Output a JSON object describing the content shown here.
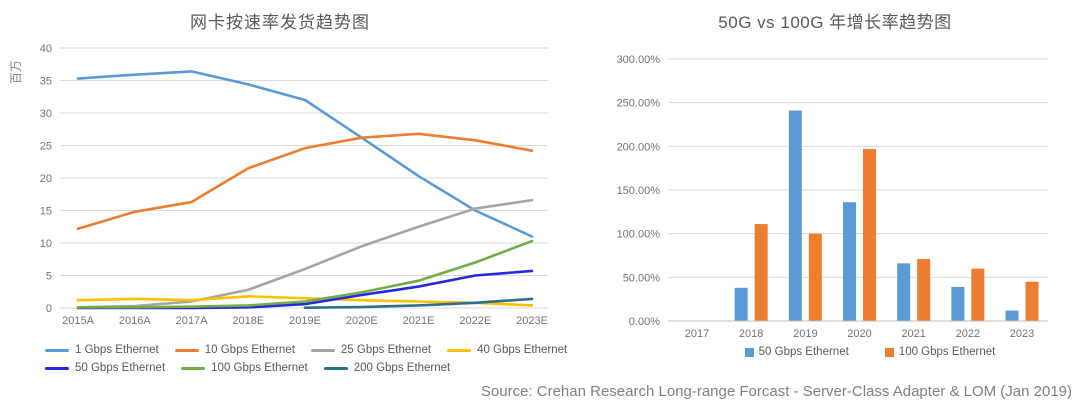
{
  "source_note": "Source: Crehan Research Long-range Forcast - Server-Class Adapter & LOM (Jan 2019)",
  "chart_data": [
    {
      "type": "line",
      "title": "网卡按速率发货趋势图",
      "xlabel": "",
      "ylabel": "百万",
      "ylim": [
        0,
        40
      ],
      "y_ticks": [
        40,
        35,
        30,
        25,
        20,
        15,
        10,
        5,
        0
      ],
      "grid": true,
      "legend_position": "bottom",
      "categories": [
        "2015A",
        "2016A",
        "2017A",
        "2018E",
        "2019E",
        "2020E",
        "2021E",
        "2022E",
        "2023E"
      ],
      "series": [
        {
          "name": "1 Gbps Ethernet",
          "color": "#5B9BD5",
          "values": [
            35.3,
            35.9,
            36.4,
            34.4,
            32.0,
            26.2,
            20.3,
            15.0,
            11.0
          ]
        },
        {
          "name": "10 Gbps Ethernet",
          "color": "#ED7D31",
          "values": [
            12.2,
            14.8,
            16.3,
            21.5,
            24.6,
            26.2,
            26.8,
            25.8,
            24.2
          ]
        },
        {
          "name": "25 Gbps Ethernet",
          "color": "#A5A5A5",
          "values": [
            0.1,
            0.3,
            1.0,
            2.8,
            6.0,
            9.5,
            12.5,
            15.3,
            16.6
          ]
        },
        {
          "name": "40 Gbps Ethernet",
          "color": "#FFC000",
          "values": [
            1.2,
            1.4,
            1.2,
            1.8,
            1.5,
            1.2,
            1.0,
            0.8,
            0.4
          ]
        },
        {
          "name": "50 Gbps Ethernet",
          "color": "#2727DD",
          "values": [
            0,
            0,
            0,
            0.1,
            0.6,
            2.0,
            3.3,
            5.0,
            5.7
          ]
        },
        {
          "name": "100 Gbps Ethernet",
          "color": "#70AD47",
          "values": [
            0.1,
            0.1,
            0.2,
            0.4,
            1.0,
            2.4,
            4.2,
            7.0,
            10.3
          ]
        },
        {
          "name": "200 Gbps Ethernet",
          "color": "#2E6E8E",
          "values": [
            null,
            null,
            null,
            null,
            0.05,
            0.15,
            0.4,
            0.8,
            1.4
          ]
        }
      ]
    },
    {
      "type": "bar",
      "title": "50G vs 100G 年增长率趋势图",
      "xlabel": "",
      "ylabel": "",
      "ylim": [
        0,
        300
      ],
      "y_ticks": [
        300,
        250,
        200,
        150,
        100,
        50,
        0
      ],
      "y_tick_labels": [
        "300.00%",
        "250.00%",
        "200.00%",
        "150.00%",
        "100.00%",
        "50.00%",
        "0.00%"
      ],
      "grid": true,
      "legend_position": "bottom",
      "categories": [
        "2017",
        "2018",
        "2019",
        "2020",
        "2021",
        "2022",
        "2023"
      ],
      "series": [
        {
          "name": "50 Gbps Ethernet",
          "color": "#5B9BD5",
          "values": [
            0,
            38,
            241,
            136,
            66,
            39,
            12
          ]
        },
        {
          "name": "100 Gbps Ethernet",
          "color": "#ED7D31",
          "values": [
            0,
            111,
            100,
            197,
            71,
            60,
            45
          ]
        }
      ]
    }
  ]
}
